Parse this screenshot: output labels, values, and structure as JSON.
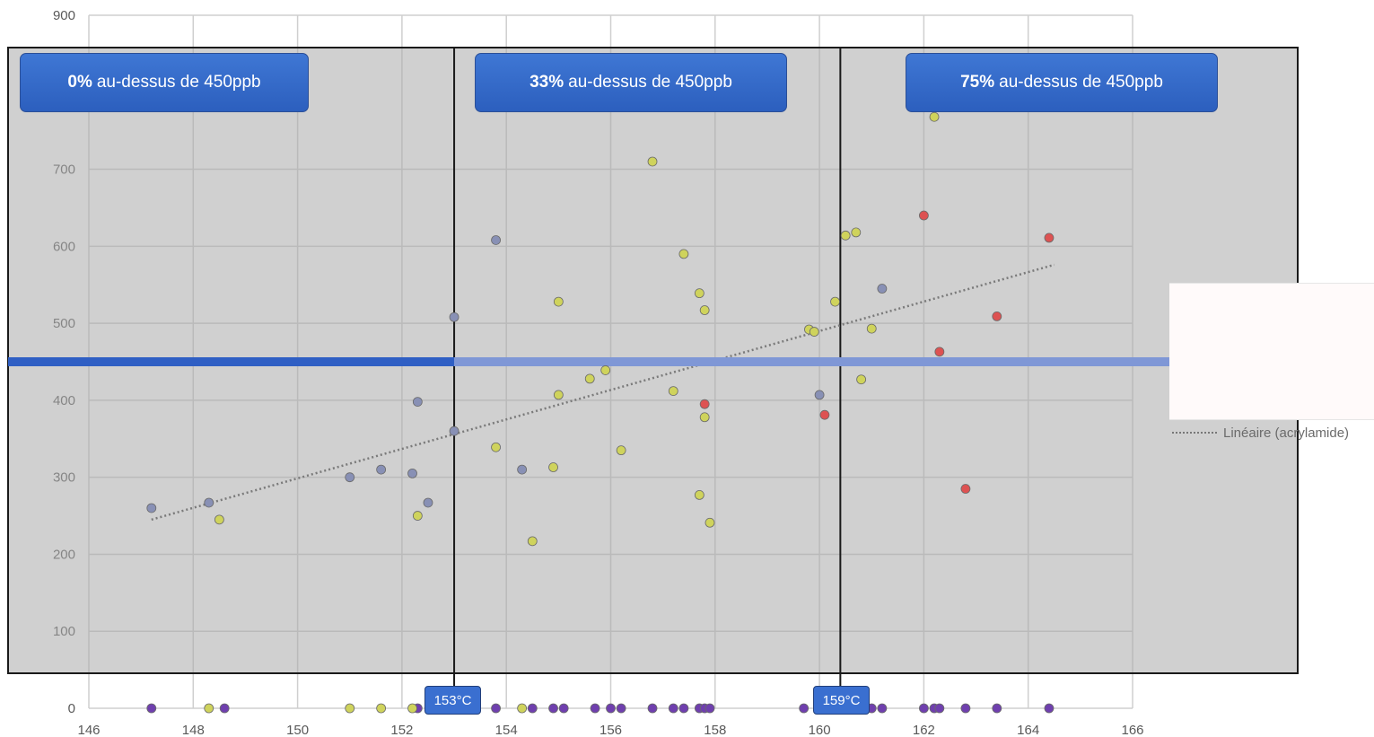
{
  "chart_data": {
    "type": "scatter",
    "title": "",
    "xlabel": "",
    "ylabel": "",
    "xlim": [
      146,
      166
    ],
    "ylim": [
      0,
      900
    ],
    "x_ticks": [
      "146",
      "148",
      "150",
      "152",
      "154",
      "156",
      "158",
      "160",
      "162",
      "164",
      "166"
    ],
    "y_ticks": [
      "0",
      "100",
      "200",
      "300",
      "400",
      "500",
      "600",
      "700",
      "900"
    ],
    "grid": true,
    "threshold": {
      "value": 450,
      "color": "#2f5fc4"
    },
    "zone_dividers": [
      153,
      160.4
    ],
    "zones": [
      {
        "percent": "0%",
        "text": "au-dessus de 450ppb"
      },
      {
        "percent": "33%",
        "text": "au-dessus de 450ppb"
      },
      {
        "percent": "75%",
        "text": "au-dessus de 450ppb"
      }
    ],
    "temperature_badges": [
      "153°C",
      "159°C"
    ],
    "legend": {
      "entries": [
        {
          "label": "Linéaire (acrylamide)",
          "style": "dotted"
        }
      ],
      "position": "right"
    },
    "trendline": {
      "x": [
        147.2,
        164.5
      ],
      "y": [
        245,
        576
      ]
    },
    "point_colors": {
      "blue": "#8890b5",
      "yellow": "#cfd35c",
      "red": "#dd5252",
      "axis": "#6f3fae"
    },
    "series": [
      {
        "color": "blue",
        "x": [
          147.2,
          148.3,
          151.0,
          151.6,
          152.2,
          152.3,
          152.5,
          153.0,
          153.0,
          153.8,
          154.3,
          160.0,
          161.2
        ],
        "y": [
          260,
          267,
          300,
          310,
          305,
          398,
          267,
          508,
          360,
          608,
          310,
          407,
          545
        ]
      },
      {
        "color": "yellow",
        "x": [
          148.5,
          152.3,
          153.8,
          154.5,
          154.9,
          155.0,
          155.0,
          155.6,
          155.9,
          156.2,
          156.8,
          157.2,
          157.4,
          157.7,
          157.7,
          157.8,
          157.8,
          157.9,
          159.8,
          159.9,
          160.3,
          160.5,
          160.7,
          160.8,
          161.0,
          162.2
        ],
        "y": [
          245,
          250,
          339,
          217,
          313,
          528,
          407,
          428,
          439,
          335,
          710,
          412,
          590,
          539,
          277,
          517,
          378,
          241,
          492,
          489,
          528,
          614,
          618,
          427,
          493,
          768
        ]
      },
      {
        "color": "red",
        "x": [
          157.8,
          160.1,
          162.0,
          162.3,
          162.8,
          163.4,
          164.4
        ],
        "y": [
          395,
          381,
          640,
          463,
          285,
          509,
          611
        ]
      },
      {
        "color": "axis",
        "x": [
          147.2,
          148.6,
          152.3,
          153.8,
          154.5,
          154.9,
          155.1,
          155.7,
          156.0,
          156.2,
          156.8,
          157.2,
          157.4,
          157.7,
          157.8,
          157.9,
          159.7,
          161.0,
          161.2,
          162.0,
          162.2,
          162.3,
          162.8,
          163.4,
          164.4
        ],
        "y": [
          0,
          0,
          0,
          0,
          0,
          0,
          0,
          0,
          0,
          0,
          0,
          0,
          0,
          0,
          0,
          0,
          0,
          0,
          0,
          0,
          0,
          0,
          0,
          0,
          0
        ]
      },
      {
        "color": "yellow",
        "x": [
          148.3,
          151.0,
          151.6,
          152.2,
          154.3
        ],
        "y": [
          0,
          0,
          0,
          0,
          0
        ]
      }
    ]
  }
}
